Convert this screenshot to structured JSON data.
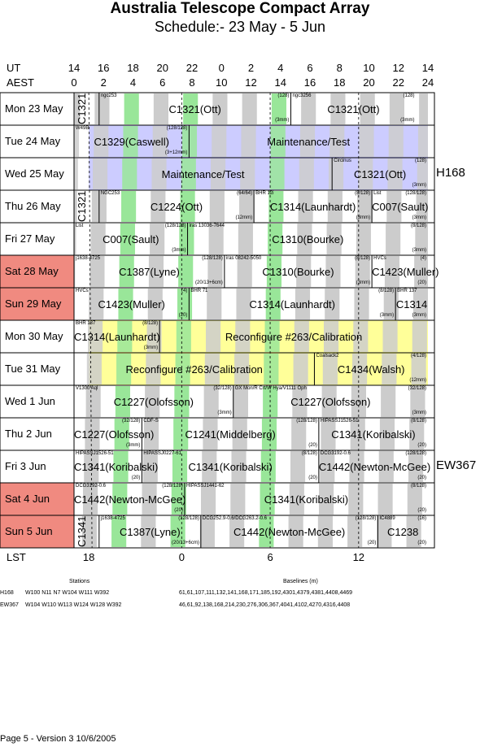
{
  "title": "Australia Telescope Compact Array",
  "subtitle": "Schedule:- 23 May - 5  Jun",
  "axes": {
    "ut_label": "UT",
    "aest_label": "AEST",
    "lst_label": "LST",
    "ut_ticks": [
      "14",
      "16",
      "18",
      "20",
      "22",
      "0",
      "2",
      "4",
      "6",
      "8",
      "10",
      "12",
      "14"
    ],
    "aest_ticks": [
      "0",
      "2",
      "4",
      "6",
      "8",
      "10",
      "12",
      "14",
      "16",
      "18",
      "20",
      "22",
      "24"
    ],
    "lst_ticks": [
      {
        "label": "18",
        "aest": 1
      },
      {
        "label": "0",
        "aest": 7.3
      },
      {
        "label": "6",
        "aest": 13.3
      },
      {
        "label": "12",
        "aest": 19.3
      }
    ]
  },
  "colors": {
    "grey": "#cccccc",
    "green": "#99e699",
    "lavender": "#ccccff",
    "yellow": "#ffff99",
    "weekend": "#f08a80"
  },
  "days": [
    {
      "label": "Mon  23 May",
      "weekend": false,
      "fill": "none"
    },
    {
      "label": "Tue  24 May",
      "weekend": false,
      "fill": "lavender"
    },
    {
      "label": "Wed 25 May",
      "weekend": false,
      "fill": "lavender"
    },
    {
      "label": "Thu  26 May",
      "weekend": false,
      "fill": "none"
    },
    {
      "label": "Fri   27 May",
      "weekend": false,
      "fill": "none"
    },
    {
      "label": "Sat   28 May",
      "weekend": true,
      "fill": "none"
    },
    {
      "label": "Sun  29 May",
      "weekend": true,
      "fill": "none"
    },
    {
      "label": "Mon  30 May",
      "weekend": false,
      "fill": "yellow"
    },
    {
      "label": "Tue   31 May",
      "weekend": false,
      "fill": "yellow"
    },
    {
      "label": "Wed   1  Jun",
      "weekend": false,
      "fill": "none"
    },
    {
      "label": "Thu    2  Jun",
      "weekend": false,
      "fill": "none"
    },
    {
      "label": "Fri     3  Jun",
      "weekend": false,
      "fill": "none"
    },
    {
      "label": "Sat     4  Jun",
      "weekend": true,
      "fill": "none"
    },
    {
      "label": "Sun    5  Jun",
      "weekend": true,
      "fill": "none"
    }
  ],
  "configurations": [
    {
      "name": "H168",
      "row_start": 0,
      "row_end": 4
    },
    {
      "name": "EW367",
      "row_start": 9,
      "row_end": 13
    }
  ],
  "blocks": [
    {
      "row": 0,
      "start": 0,
      "end": 1.7,
      "label": "C1321",
      "vertical": true,
      "tl": "",
      "tr": "",
      "bl": "",
      "br": ""
    },
    {
      "row": 0,
      "start": 1.7,
      "end": 14.7,
      "label": "C1321(Ott)",
      "tl": "ngc253",
      "tr": "(128)",
      "br": "(3mm)"
    },
    {
      "row": 0,
      "start": 14.7,
      "end": 23.2,
      "label": "C1321(Ott)",
      "tl": "ngc3256",
      "tr": "(128)",
      "br": "(3mm)"
    },
    {
      "row": 1,
      "start": 0,
      "end": 7.8,
      "label": "C1329(Caswell)",
      "tl": "W49B",
      "tr": "(128/128)",
      "br": "(3+12mm)"
    },
    {
      "row": 1,
      "start": 7.8,
      "end": 24,
      "label": "Maintenance/Test",
      "fill": "lavender"
    },
    {
      "row": 2,
      "start": 0,
      "end": 17.5,
      "label": "Maintenance/Test",
      "fill": "lavender"
    },
    {
      "row": 2,
      "start": 17.5,
      "end": 24,
      "label": "C1321(Ott)",
      "tl": "Circinus",
      "tr": "(128)",
      "br": "(3mm)"
    },
    {
      "row": 3,
      "start": 0,
      "end": 1.7,
      "label": "C1321",
      "vertical": true
    },
    {
      "row": 3,
      "start": 1.7,
      "end": 12.2,
      "label": "C1224(Ott)",
      "tl": "NGC253",
      "tr": "(64/64)",
      "br": "(12mm)"
    },
    {
      "row": 3,
      "start": 12.2,
      "end": 20.2,
      "label": "C1314(Launhardt)",
      "tl": "BHR 12i",
      "tr": "(8/128)",
      "br": "(3mm)"
    },
    {
      "row": 3,
      "start": 20.2,
      "end": 24,
      "label": "C007(Sault)",
      "tl": "List",
      "tr": "(128/128)",
      "br": "(3mm)"
    },
    {
      "row": 4,
      "start": 0,
      "end": 7.7,
      "label": "C007(Sault)",
      "tl": "List",
      "tr": "(128/128)",
      "br": "(3mm)"
    },
    {
      "row": 4,
      "start": 7.7,
      "end": 24,
      "label": "C1310(Bourke)",
      "tl": "iras 13036-7644",
      "tr": "(8/128)",
      "br": "(3mm)"
    },
    {
      "row": 5,
      "start": 0,
      "end": 10.2,
      "label": "C1387(Lyne)",
      "tl": "j1638-4725",
      "tr": "(128/128)",
      "bl": "",
      "br": "(20/13+6cm)"
    },
    {
      "row": 5,
      "start": 10.2,
      "end": 20.2,
      "label": "C1310(Bourke)",
      "tl": "iras 08242-5050",
      "tr": "(8/128)",
      "br": "(3mm)"
    },
    {
      "row": 5,
      "start": 20.2,
      "end": 24,
      "label": "C1423(Muller)",
      "tl": "HVCs",
      "tr": "(4)",
      "br": "(20)"
    },
    {
      "row": 6,
      "start": 0,
      "end": 7.8,
      "label": "C1423(Muller)",
      "tl": "HVCs",
      "tr": "(4)",
      "br": "(20)"
    },
    {
      "row": 6,
      "start": 7.8,
      "end": 21.8,
      "label": "C1314(Launhardt)",
      "tl": "BHR 71",
      "tr": "(8/128)",
      "br": "(3mm)"
    },
    {
      "row": 6,
      "start": 21.8,
      "end": 24,
      "label": "C1314",
      "tl": "BHR 137",
      "br": "(3mm)"
    },
    {
      "row": 7,
      "start": 0,
      "end": 5.8,
      "label": "C1314(Launhardt)",
      "tl": "BHR 137",
      "tr": "(8/128)",
      "br": "(3mm)"
    },
    {
      "row": 7,
      "start": 5.8,
      "end": 24,
      "label": "Reconfigure #263/Calibration",
      "fill": "yellow"
    },
    {
      "row": 8,
      "start": 0,
      "end": 16.3,
      "label": "Reconfigure #263/Calibration",
      "fill": "yellow"
    },
    {
      "row": 8,
      "start": 16.3,
      "end": 24,
      "label": "C1434(Walsh)",
      "tl": "Coalsack2",
      "tr": "(4/128)",
      "br": "(12mm)"
    },
    {
      "row": 9,
      "start": 0,
      "end": 10.8,
      "label": "C1227(Olofsson)",
      "tl": "V1300 Aql",
      "tr": "(32/128)",
      "br": "(3mm)"
    },
    {
      "row": 9,
      "start": 10.8,
      "end": 24,
      "label": "C1227(Olofsson)",
      "tl": "GX Mon/R Crt/W Hya/V1111 Oph",
      "tr": "(32/128)",
      "br": "(3mm)"
    },
    {
      "row": 10,
      "start": 0,
      "end": 4.6,
      "label": "C1227(Olofsson)",
      "tr": "(32/128)",
      "br": "(3mm)"
    },
    {
      "row": 10,
      "start": 4.6,
      "end": 16.6,
      "label": "C1241(Middelberg)",
      "tl": "CDF-S",
      "tr": "(128/128)",
      "br": "(20)"
    },
    {
      "row": 10,
      "start": 16.6,
      "end": 24,
      "label": "C1341(Koribalski)",
      "tl": "HIPASSJ1526-51",
      "tr": "(8/128)",
      "br": "(20)"
    },
    {
      "row": 11,
      "start": 0,
      "end": 4.6,
      "label": "C1341(Koribalski)",
      "tl": "HIPASSJ1526-51",
      "br": "(20)"
    },
    {
      "row": 11,
      "start": 4.6,
      "end": 16.6,
      "label": "C1341(Koribalski)",
      "tl": "HIPASSJ0227-61",
      "tr": "(8/128)",
      "br": "(20)"
    },
    {
      "row": 11,
      "start": 16.6,
      "end": 24,
      "label": "C1442(Newton-McGee)",
      "tl": "DCG3192-0.6",
      "tr": "(128/128)",
      "br": "(20)"
    },
    {
      "row": 12,
      "start": 0,
      "end": 7.5,
      "label": "C1442(Newton-McGee)",
      "tl": "DCG3192-0.6",
      "tr": "(128/128)",
      "br": "(20)"
    },
    {
      "row": 12,
      "start": 7.5,
      "end": 24,
      "label": "C1341(Koribalski)",
      "tl": "HIPASSJ1441-62",
      "tr": "(8/128)",
      "br": "(20)"
    },
    {
      "row": 13,
      "start": 0,
      "end": 1.7,
      "label": "C1341",
      "vertical": true
    },
    {
      "row": 13,
      "start": 1.7,
      "end": 8.6,
      "label": "C1387(Lyne)",
      "tl": "j1638-4725",
      "tr": "(128/128)",
      "br": "(20/13+6cm)"
    },
    {
      "row": 13,
      "start": 8.6,
      "end": 20.6,
      "label": "C1442(Newton-McGee)",
      "tl": "DCG252.9-0.6/DCG263.2-0.6",
      "tr": "(128/128)",
      "br": "(20)"
    },
    {
      "row": 13,
      "start": 20.6,
      "end": 24,
      "label": "C1238",
      "tl": "IC4889",
      "tr": "(16)",
      "br": "(20)"
    }
  ],
  "footer": {
    "stations_header": "Stations",
    "baselines_header": "Baselines (m)",
    "rows": [
      {
        "config": "H168",
        "stations": "W100 N11 N7 W104 W111 W392",
        "baselines": "61,61,107,111,132,141,168,171,185,192,4301,4379,4381,4408,4469"
      },
      {
        "config": "EW367",
        "stations": "W104 W110 W113 W124 W128 W392",
        "baselines": "46,61,92,138,168,214,230,276,306,367,4041,4102,4270,4316,4408"
      }
    ],
    "page": "Page 5 - Version 3  10/6/2005"
  }
}
